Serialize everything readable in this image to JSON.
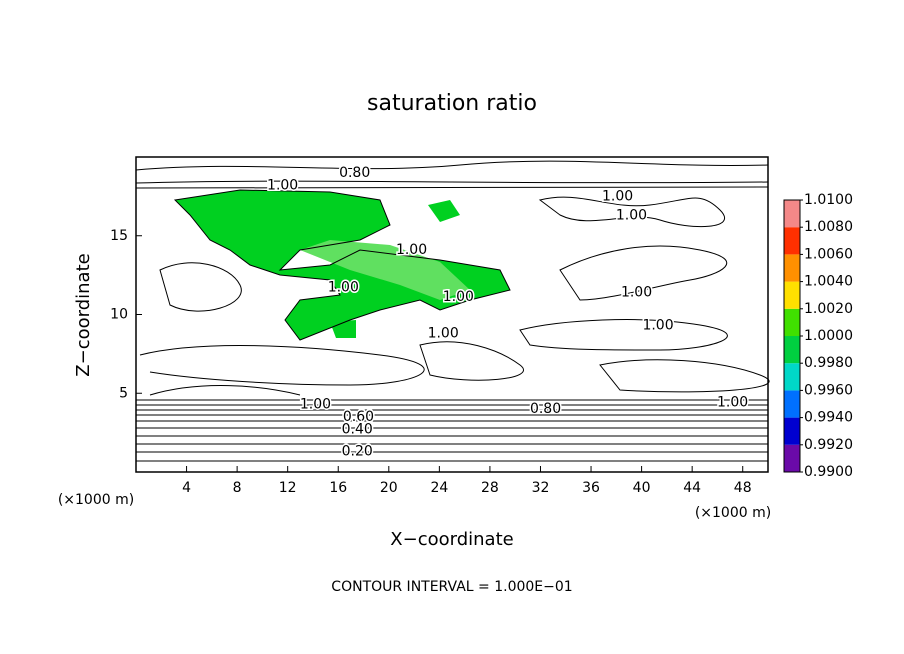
{
  "chart_data": {
    "type": "contour",
    "title": "saturation ratio",
    "x_label": "X−coordinate",
    "y_label": "Z−coordinate",
    "x_unit": "(×1000 m)",
    "y_unit": "(×1000 m)",
    "footer": "CONTOUR INTERVAL = 1.000E−01",
    "xlim": [
      0,
      50
    ],
    "xticks": [
      4,
      8,
      12,
      16,
      20,
      24,
      28,
      32,
      36,
      40,
      44,
      48
    ],
    "ylim": [
      0,
      20
    ],
    "yticks": [
      5,
      10,
      15
    ],
    "colorbar": {
      "clim": [
        0.99,
        1.01
      ],
      "colors": [
        "#6a0aa8",
        "#0000d0",
        "#0070ff",
        "#00d8c8",
        "#00d040",
        "#40e000",
        "#ffe000",
        "#ff9000",
        "#ff3000",
        "#f48888"
      ],
      "ticks": [
        {
          "value": 0.99,
          "label": "0.9900"
        },
        {
          "value": 0.992,
          "label": "0.9920"
        },
        {
          "value": 0.994,
          "label": "0.9940"
        },
        {
          "value": 0.996,
          "label": "0.9960"
        },
        {
          "value": 0.998,
          "label": "0.9980"
        },
        {
          "value": 1.0,
          "label": "1.0000"
        },
        {
          "value": 1.002,
          "label": "1.0020"
        },
        {
          "value": 1.004,
          "label": "1.0040"
        },
        {
          "value": 1.006,
          "label": "1.0060"
        },
        {
          "value": 1.008,
          "label": "1.0080"
        },
        {
          "value": 1.01,
          "label": "1.0100"
        }
      ]
    },
    "annotations": [
      {
        "text": "0.80",
        "x": 17.3,
        "y": 19.0
      },
      {
        "text": "1.00",
        "x": 11.6,
        "y": 18.2
      },
      {
        "text": "1.00",
        "x": 38.1,
        "y": 17.5
      },
      {
        "text": "1.00",
        "x": 39.2,
        "y": 16.3
      },
      {
        "text": "1.00",
        "x": 21.8,
        "y": 14.1
      },
      {
        "text": "1.00",
        "x": 16.4,
        "y": 11.7
      },
      {
        "text": "1.00",
        "x": 25.5,
        "y": 11.1
      },
      {
        "text": "1.00",
        "x": 39.6,
        "y": 11.4
      },
      {
        "text": "1.00",
        "x": 41.3,
        "y": 9.3
      },
      {
        "text": "1.00",
        "x": 24.3,
        "y": 8.8
      },
      {
        "text": "1.00",
        "x": 14.2,
        "y": 4.3
      },
      {
        "text": "0.60",
        "x": 17.6,
        "y": 3.5
      },
      {
        "text": "0.40",
        "x": 17.5,
        "y": 2.7
      },
      {
        "text": "0.20",
        "x": 17.5,
        "y": 1.3
      },
      {
        "text": "0.80",
        "x": 32.4,
        "y": 4.0
      },
      {
        "text": "1.00",
        "x": 47.2,
        "y": 4.4
      }
    ]
  }
}
